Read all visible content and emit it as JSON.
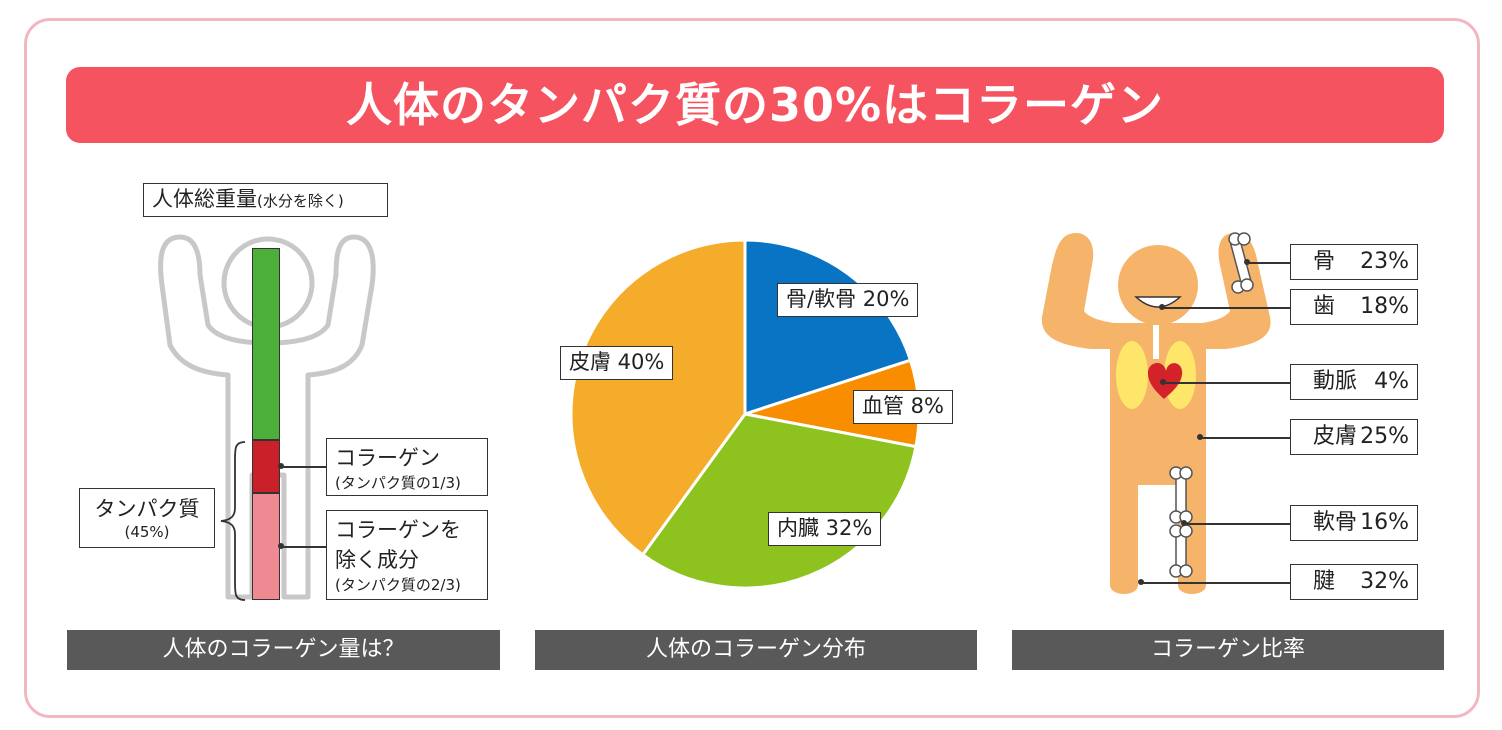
{
  "title": "人体のタンパク質の30%はコラーゲン",
  "panels": [
    {
      "label": "人体のコラーゲン量は？"
    },
    {
      "label": "人体のコラーゲン分布"
    },
    {
      "label": "コラーゲン比率"
    }
  ],
  "body_weight": {
    "label": "人体総重量",
    "label_note": "(水分を除く)",
    "protein_label": "タンパク質",
    "protein_pct": "(45%)",
    "collagen_label": "コラーゲン",
    "collagen_note": "(タンパク質の1/3)",
    "other_label_1": "コラーゲンを",
    "other_label_2": "除く成分",
    "other_note": "(タンパク質の2/3)"
  },
  "colors": {
    "banner": "#f5535f",
    "frame": "#f2b8c0",
    "panel_label_bg": "#595959",
    "bar_other": "#4caf3a",
    "bar_collagen": "#c9202a",
    "bar_noncollagen": "#ef8a92",
    "body_skin": "#f6b46a"
  },
  "chart_data": [
    {
      "type": "pie",
      "title": "人体のコラーゲン分布",
      "slices": [
        {
          "label": "骨/軟骨",
          "value": 20,
          "display": "骨/軟骨 20%",
          "color": "#0a74c4"
        },
        {
          "label": "血管",
          "value": 8,
          "display": "血管 8%",
          "color": "#f98d00"
        },
        {
          "label": "内臓",
          "value": 32,
          "display": "内臓 32%",
          "color": "#8dc21f"
        },
        {
          "label": "皮膚",
          "value": 40,
          "display": "皮膚 40%",
          "color": "#f5ac2b"
        }
      ]
    },
    {
      "type": "table",
      "title": "コラーゲン比率",
      "rows": [
        {
          "name": "骨",
          "value": "23%"
        },
        {
          "name": "歯",
          "value": "18%"
        },
        {
          "name": "動脈",
          "value": "4%"
        },
        {
          "name": "皮膚",
          "value": "25%"
        },
        {
          "name": "軟骨",
          "value": "16%"
        },
        {
          "name": "腱",
          "value": "32%"
        }
      ]
    }
  ]
}
